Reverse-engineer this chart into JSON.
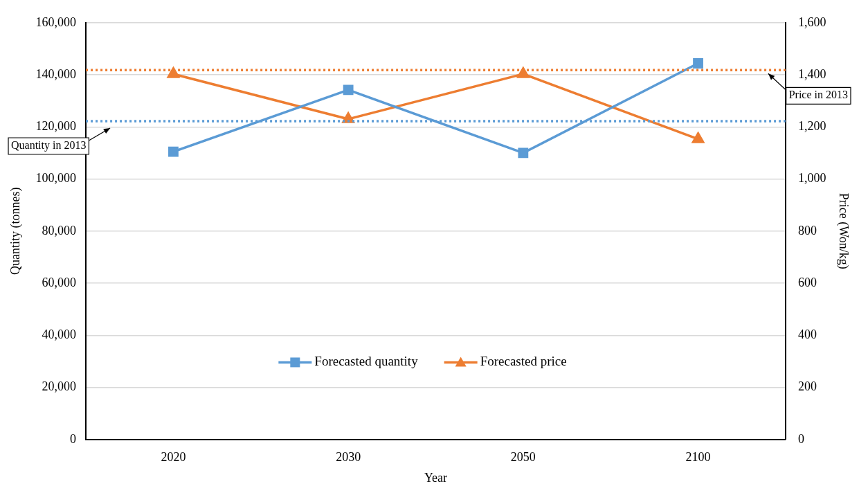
{
  "chart_data": {
    "type": "line",
    "xlabel": "Year",
    "ylabel": "Quantity (tonnes)",
    "y2label": "Price (Won/kg)",
    "categories": [
      "2020",
      "2030",
      "2050",
      "2100"
    ],
    "series": [
      {
        "name": "Forecasted quantity",
        "color": "#5b9bd5",
        "marker": "square",
        "values": [
          110500,
          134200,
          110000,
          144400
        ]
      },
      {
        "name": "Forecasted price",
        "color": "#ed7d31",
        "marker": "triangle",
        "axis": "y2",
        "values": [
          1403,
          1230,
          1403,
          1153
        ]
      }
    ],
    "ylim": [
      0,
      160000
    ],
    "yticks": [
      0,
      {
        "value": 20000,
        "label": "20,000"
      },
      {
        "value": 40000,
        "label": "40,000"
      },
      {
        "value": 60000,
        "label": "60,000"
      },
      {
        "value": 80000,
        "label": "80,000"
      },
      {
        "value": 100000,
        "label": "100,000"
      },
      {
        "value": 120000,
        "label": "120,000"
      },
      {
        "value": 140000,
        "label": "140,000"
      },
      {
        "value": 160000,
        "label": "160,000"
      }
    ],
    "y2lim": [
      0,
      1600
    ],
    "y2ticks": [
      0,
      200,
      400,
      600,
      800,
      {
        "value": 1000,
        "label": "1,000"
      },
      {
        "value": 1200,
        "label": "1,200"
      },
      {
        "value": 1400,
        "label": "1,400"
      },
      {
        "value": 1600,
        "label": "1,600"
      }
    ],
    "ref_lines": [
      {
        "axis": "y",
        "value": 122200,
        "label": "Quantity in 2013",
        "color": "#5b9bd5",
        "line_style": "dotted"
      },
      {
        "axis": "y2",
        "value": 1418,
        "label": "Price in 2013",
        "color": "#ed7d31",
        "line_style": "dotted"
      }
    ],
    "grid": "y",
    "legend": "bottom",
    "line_style": "solid"
  }
}
